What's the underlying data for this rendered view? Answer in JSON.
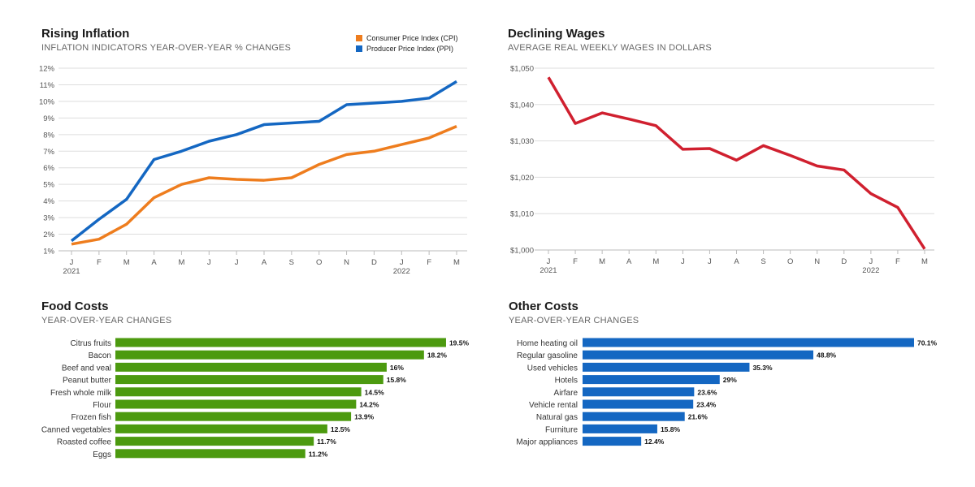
{
  "colors": {
    "cpi": "#ee7d1e",
    "ppi": "#1467c2",
    "wages": "#d0202f",
    "food": "#4c9a0f",
    "other": "#1467c2"
  },
  "chart_data": [
    {
      "type": "line",
      "title": "Rising Inflation",
      "subtitle": "INFLATION INDICATORS YEAR-OVER-YEAR % CHANGES",
      "categories": [
        "J",
        "F",
        "M",
        "A",
        "M",
        "J",
        "J",
        "A",
        "S",
        "O",
        "N",
        "D",
        "J",
        "F",
        "M"
      ],
      "year_labels": [
        "2021",
        "2022"
      ],
      "yticks": [
        "1%",
        "2%",
        "3%",
        "4%",
        "5%",
        "6%",
        "7%",
        "8%",
        "9%",
        "10%",
        "11%",
        "12%"
      ],
      "ylim": [
        1,
        12
      ],
      "grid": true,
      "legend": "top-right",
      "series": [
        {
          "name": "Consumer Price Index (CPI)",
          "values": [
            1.4,
            1.7,
            2.6,
            4.2,
            5.0,
            5.4,
            5.3,
            5.25,
            5.4,
            6.2,
            6.8,
            7.0,
            7.4,
            7.8,
            8.5
          ]
        },
        {
          "name": "Producer Price Index (PPI)",
          "values": [
            1.6,
            2.9,
            4.1,
            6.5,
            7.0,
            7.6,
            8.0,
            8.6,
            8.7,
            8.8,
            9.8,
            9.9,
            10.0,
            10.2,
            11.2
          ]
        }
      ]
    },
    {
      "type": "line",
      "title": "Declining Wages",
      "subtitle": "AVERAGE REAL WEEKLY WAGES IN DOLLARS",
      "categories": [
        "J",
        "F",
        "M",
        "A",
        "M",
        "J",
        "J",
        "A",
        "S",
        "O",
        "N",
        "D",
        "J",
        "F",
        "M"
      ],
      "year_labels": [
        "2021",
        "2022"
      ],
      "yticks": [
        "$1,000",
        "$1,010",
        "$1,020",
        "$1,030",
        "$1,040",
        "$1,050"
      ],
      "ylim": [
        1000,
        1050
      ],
      "grid": true,
      "series": [
        {
          "values": [
            1047.5,
            1034.8,
            1037.7,
            1036.0,
            1034.2,
            1027.7,
            1027.9,
            1024.7,
            1028.7,
            1026.0,
            1023.1,
            1022.0,
            1015.5,
            1011.7,
            1000.3
          ]
        }
      ]
    },
    {
      "type": "bar",
      "title": "Food Costs",
      "subtitle": "YEAR-OVER-YEAR CHANGES",
      "categories": [
        "Citrus fruits",
        "Bacon",
        "Beef and veal",
        "Peanut butter",
        "Fresh whole milk",
        "Flour",
        "Frozen fish",
        "Canned vegetables",
        "Roasted coffee",
        "Eggs"
      ],
      "values": [
        19.5,
        18.2,
        16,
        15.8,
        14.5,
        14.2,
        13.9,
        12.5,
        11.7,
        11.2
      ],
      "labels": [
        "19.5%",
        "18.2%",
        "16%",
        "15.8%",
        "14.5%",
        "14.2%",
        "13.9%",
        "12.5%",
        "11.7%",
        "11.2%"
      ]
    },
    {
      "type": "bar",
      "title": "Other Costs",
      "subtitle": "YEAR-OVER-YEAR CHANGES",
      "categories": [
        "Home heating oil",
        "Regular gasoline",
        "Used vehicles",
        "Hotels",
        "Airfare",
        "Vehicle rental",
        "Natural gas",
        "Furniture",
        "Major appliances"
      ],
      "values": [
        70.1,
        48.8,
        35.3,
        29,
        23.6,
        23.4,
        21.6,
        15.8,
        12.4
      ],
      "labels": [
        "70.1%",
        "48.8%",
        "35.3%",
        "29%",
        "23.6%",
        "23.4%",
        "21.6%",
        "15.8%",
        "12.4%"
      ]
    }
  ]
}
